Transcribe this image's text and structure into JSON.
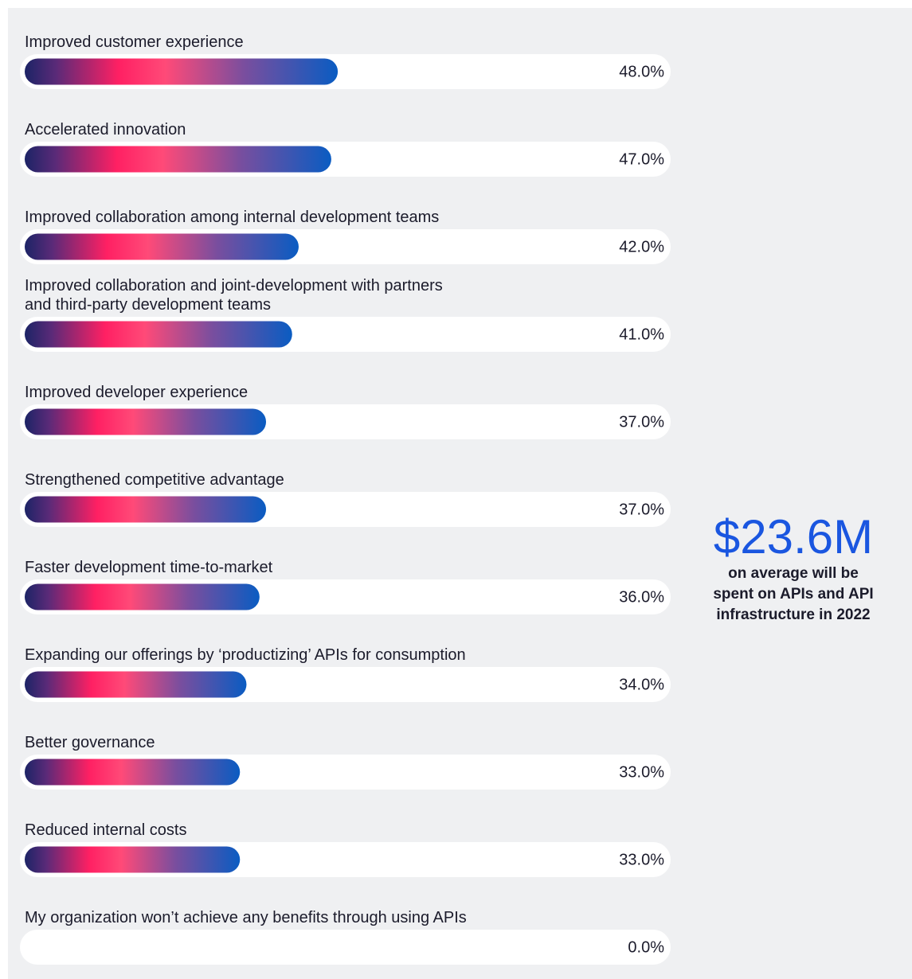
{
  "chart_data": {
    "type": "bar",
    "categories": [
      "Improved customer experience",
      "Accelerated innovation",
      "Improved collaboration among internal development teams",
      "Improved collaboration and joint-development with partners\nand third-party development teams",
      "Improved developer experience",
      "Strengthened competitive advantage",
      "Faster development time-to-market",
      "Expanding our offerings by ‘productizing’ APIs for consumption",
      "Better governance",
      "Reduced internal costs",
      "My organization won’t achieve any benefits through using APIs"
    ],
    "values": [
      48,
      47,
      42,
      41,
      37,
      37,
      36,
      34,
      33,
      33,
      0
    ],
    "value_labels": [
      "48.0%",
      "47.0%",
      "42.0%",
      "41.0%",
      "37.0%",
      "37.0%",
      "36.0%",
      "34.0%",
      "33.0%",
      "33.0%",
      "0.0%"
    ],
    "xlim": [
      0,
      100
    ],
    "callout": {
      "figure": "$23.6M",
      "text": "on average will be\nspent on APIs and API\ninfrastructure in 2022"
    }
  }
}
